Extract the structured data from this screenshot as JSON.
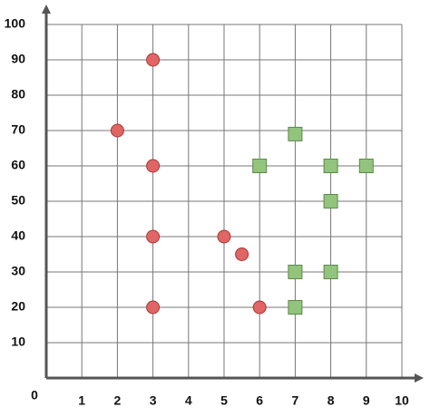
{
  "chart_data": {
    "type": "scatter",
    "xlim": [
      0,
      10
    ],
    "ylim": [
      0,
      100
    ],
    "xticks": [
      0,
      1,
      2,
      3,
      4,
      5,
      6,
      7,
      8,
      9,
      10
    ],
    "yticks": [
      10,
      20,
      30,
      40,
      50,
      60,
      70,
      80,
      90,
      100
    ],
    "grid": true,
    "series": [
      {
        "color": "#e06666",
        "marker": "circle",
        "x": [
          3,
          2,
          3,
          3,
          5,
          5.5,
          3,
          6
        ],
        "values": [
          90,
          70,
          60,
          40,
          40,
          35,
          20,
          20
        ]
      },
      {
        "color": "#93c47d",
        "marker": "square",
        "x": [
          7,
          6,
          8,
          9,
          8,
          7,
          8,
          7
        ],
        "values": [
          69,
          60,
          60,
          60,
          50,
          30,
          30,
          20
        ]
      }
    ]
  }
}
